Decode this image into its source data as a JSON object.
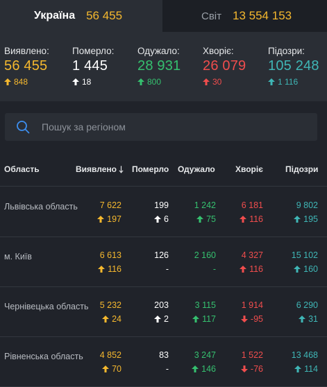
{
  "colors": {
    "confirmed": "#f5b82e",
    "deaths": "#ffffff",
    "recovered": "#35c06f",
    "sick": "#f04d4d",
    "suspected": "#3fb6b6"
  },
  "tabs": {
    "ukraine": {
      "label": "Україна",
      "count": "56 455"
    },
    "world": {
      "label": "Світ",
      "count": "13 554 153"
    }
  },
  "summary": [
    {
      "key": "confirmed",
      "label": "Виявлено:",
      "value": "56 455",
      "delta": "848"
    },
    {
      "key": "deaths",
      "label": "Померло:",
      "value": "1 445",
      "delta": "18"
    },
    {
      "key": "recovered",
      "label": "Одужало:",
      "value": "28 931",
      "delta": "800"
    },
    {
      "key": "sick",
      "label": "Хворіє:",
      "value": "26 079",
      "delta": "30"
    },
    {
      "key": "suspected",
      "label": "Підозри:",
      "value": "105 248",
      "delta": "1 116"
    }
  ],
  "search": {
    "placeholder": "Пошук за регіоном",
    "value": ""
  },
  "table": {
    "headers": {
      "region": "Область",
      "confirmed": "Виявлено",
      "deaths": "Померло",
      "recovered": "Одужало",
      "sick": "Хворіє",
      "suspected": "Підозри"
    },
    "sort_icon": "arrow-down-icon",
    "rows": [
      {
        "region": "Львівська область",
        "confirmed": "7 622",
        "confirmed_delta": "197",
        "deaths": "199",
        "deaths_delta": "6",
        "recovered": "1 242",
        "recovered_delta": "75",
        "sick": "6 181",
        "sick_delta": "116",
        "sick_dir": "up",
        "suspected": "9 802",
        "suspected_delta": "195"
      },
      {
        "region": "м. Київ",
        "confirmed": "6 613",
        "confirmed_delta": "116",
        "deaths": "126",
        "deaths_delta": "-",
        "recovered": "2 160",
        "recovered_delta": "-",
        "sick": "4 327",
        "sick_delta": "116",
        "sick_dir": "up",
        "suspected": "15 102",
        "suspected_delta": "160"
      },
      {
        "region": "Чернівецька область",
        "confirmed": "5 232",
        "confirmed_delta": "24",
        "deaths": "203",
        "deaths_delta": "2",
        "recovered": "3 115",
        "recovered_delta": "117",
        "sick": "1 914",
        "sick_delta": "-95",
        "sick_dir": "down",
        "suspected": "6 290",
        "suspected_delta": "31"
      },
      {
        "region": "Рівненська область",
        "confirmed": "4 852",
        "confirmed_delta": "70",
        "deaths": "83",
        "deaths_delta": "-",
        "recovered": "3 247",
        "recovered_delta": "146",
        "sick": "1 522",
        "sick_delta": "-76",
        "sick_dir": "down",
        "suspected": "13 468",
        "suspected_delta": "114"
      }
    ]
  }
}
